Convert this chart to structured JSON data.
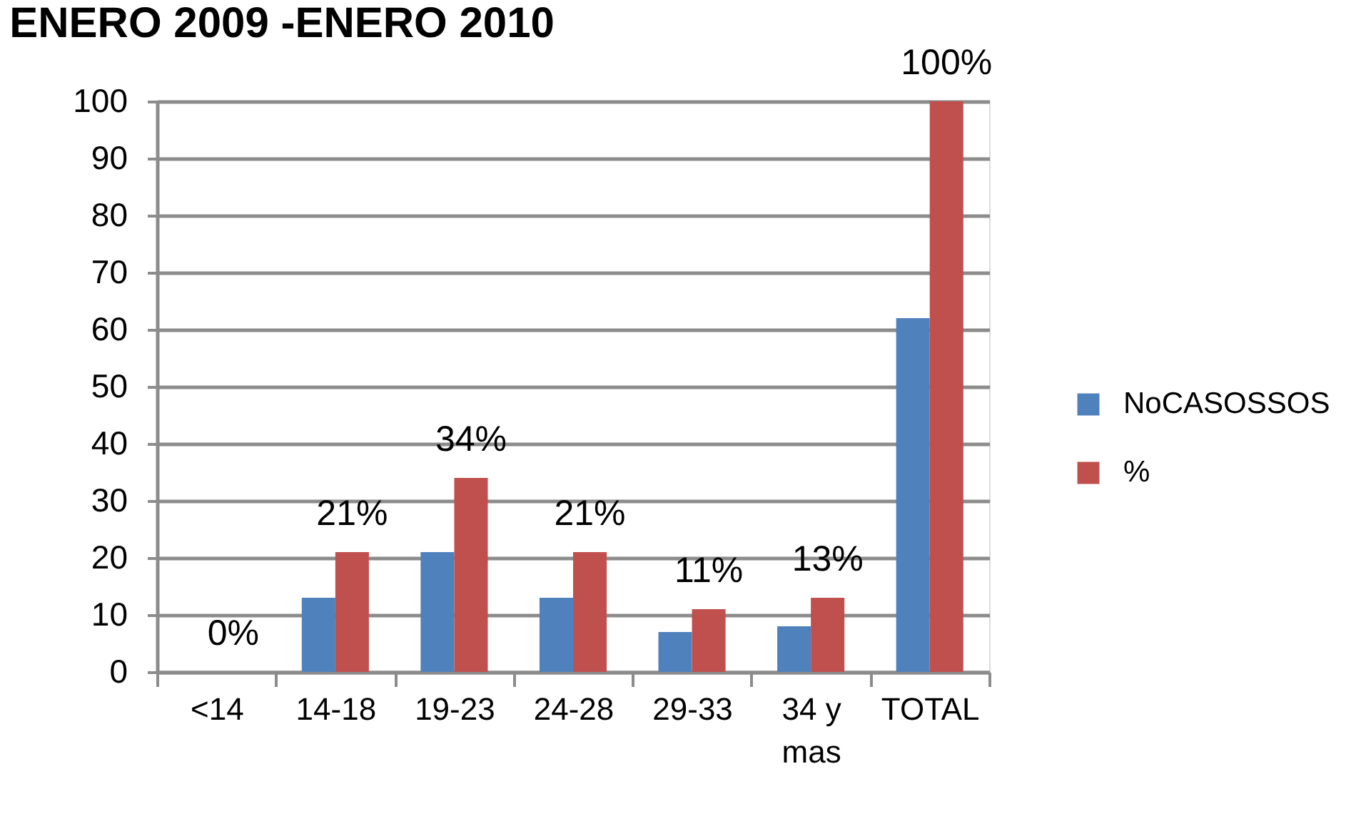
{
  "chart_data": {
    "type": "bar",
    "title": "ENERO 2009 -ENERO 2010",
    "categories": [
      "<14",
      "14-18",
      "19-23",
      "24-28",
      "29-33",
      "34 y mas",
      "TOTAL"
    ],
    "series": [
      {
        "name": "NoCASOSSOS",
        "color": "#4f81bd",
        "values": [
          0,
          13,
          21,
          13,
          7,
          8,
          62
        ]
      },
      {
        "name": "%",
        "color": "#c0504d",
        "values": [
          0,
          21,
          34,
          21,
          11,
          13,
          100
        ],
        "value_labels": [
          "0%",
          "21%",
          "34%",
          "21%",
          "11%",
          "13%",
          "100%"
        ]
      }
    ],
    "ylim": [
      0,
      100
    ],
    "yticks": [
      0,
      10,
      20,
      30,
      40,
      50,
      60,
      70,
      80,
      90,
      100
    ],
    "grid": "y",
    "legend": "right"
  }
}
